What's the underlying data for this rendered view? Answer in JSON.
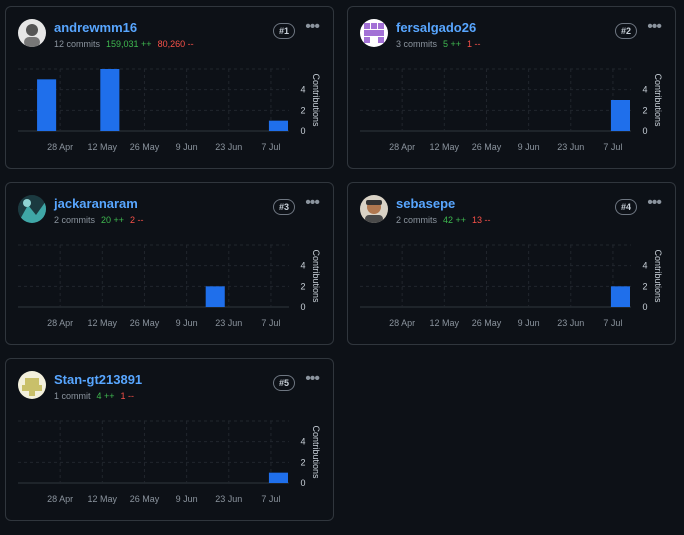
{
  "cards": [
    {
      "rank": "#1",
      "username": "andrewmm16",
      "commits": "12 commits",
      "additions": "159,031 ++",
      "deletions": "80,260 --",
      "more_icon": "kebab-horizontal-icon",
      "avatar_icon": "user-avatar-icon"
    },
    {
      "rank": "#2",
      "username": "fersalgado26",
      "commits": "3 commits",
      "additions": "5 ++",
      "deletions": "1 --",
      "more_icon": "kebab-horizontal-icon",
      "avatar_icon": "identicon-avatar-icon"
    },
    {
      "rank": "#3",
      "username": "jackaranaram",
      "commits": "2 commits",
      "additions": "20 ++",
      "deletions": "2 --",
      "more_icon": "kebab-horizontal-icon",
      "avatar_icon": "user-avatar-icon"
    },
    {
      "rank": "#4",
      "username": "sebasepe",
      "commits": "2 commits",
      "additions": "42 ++",
      "deletions": "13 --",
      "more_icon": "kebab-horizontal-icon",
      "avatar_icon": "user-avatar-icon"
    },
    {
      "rank": "#5",
      "username": "Stan-gt213891",
      "commits": "1 commit",
      "additions": "4 ++",
      "deletions": "1 --",
      "more_icon": "kebab-horizontal-icon",
      "avatar_icon": "identicon-avatar-icon"
    }
  ],
  "colors": {
    "bar": "#1f6feb",
    "add": "#3fb950",
    "del": "#f85149",
    "link": "#58a6ff"
  },
  "chart_data": [
    {
      "type": "bar",
      "title": "",
      "xlabel": "",
      "ylabel": "Contributions",
      "x_ticks": [
        "28 Apr",
        "12 May",
        "26 May",
        "9 Jun",
        "23 Jun",
        "7 Jul"
      ],
      "y_ticks": [
        "0",
        "2",
        "4"
      ],
      "ylim": [
        0,
        6
      ],
      "grid": true,
      "bars": [
        {
          "x": "2025-04-20",
          "y": 5
        },
        {
          "x": "2025-05-11",
          "y": 6
        },
        {
          "x": "2025-07-06",
          "y": 1
        }
      ]
    },
    {
      "type": "bar",
      "title": "",
      "xlabel": "",
      "ylabel": "Contributions",
      "x_ticks": [
        "28 Apr",
        "12 May",
        "26 May",
        "9 Jun",
        "23 Jun",
        "7 Jul"
      ],
      "y_ticks": [
        "0",
        "2",
        "4"
      ],
      "ylim": [
        0,
        6
      ],
      "grid": true,
      "bars": [
        {
          "x": "2025-07-06",
          "y": 3
        }
      ]
    },
    {
      "type": "bar",
      "title": "",
      "xlabel": "",
      "ylabel": "Contributions",
      "x_ticks": [
        "28 Apr",
        "12 May",
        "26 May",
        "9 Jun",
        "23 Jun",
        "7 Jul"
      ],
      "y_ticks": [
        "0",
        "2",
        "4"
      ],
      "ylim": [
        0,
        6
      ],
      "grid": true,
      "bars": [
        {
          "x": "2025-06-15",
          "y": 2
        }
      ]
    },
    {
      "type": "bar",
      "title": "",
      "xlabel": "",
      "ylabel": "Contributions",
      "x_ticks": [
        "28 Apr",
        "12 May",
        "26 May",
        "9 Jun",
        "23 Jun",
        "7 Jul"
      ],
      "y_ticks": [
        "0",
        "2",
        "4"
      ],
      "ylim": [
        0,
        6
      ],
      "grid": true,
      "bars": [
        {
          "x": "2025-07-06",
          "y": 2
        }
      ]
    },
    {
      "type": "bar",
      "title": "",
      "xlabel": "",
      "ylabel": "Contributions",
      "x_ticks": [
        "28 Apr",
        "12 May",
        "26 May",
        "9 Jun",
        "23 Jun",
        "7 Jul"
      ],
      "y_ticks": [
        "0",
        "2",
        "4"
      ],
      "ylim": [
        0,
        6
      ],
      "grid": true,
      "bars": [
        {
          "x": "2025-07-06",
          "y": 1
        }
      ]
    }
  ]
}
